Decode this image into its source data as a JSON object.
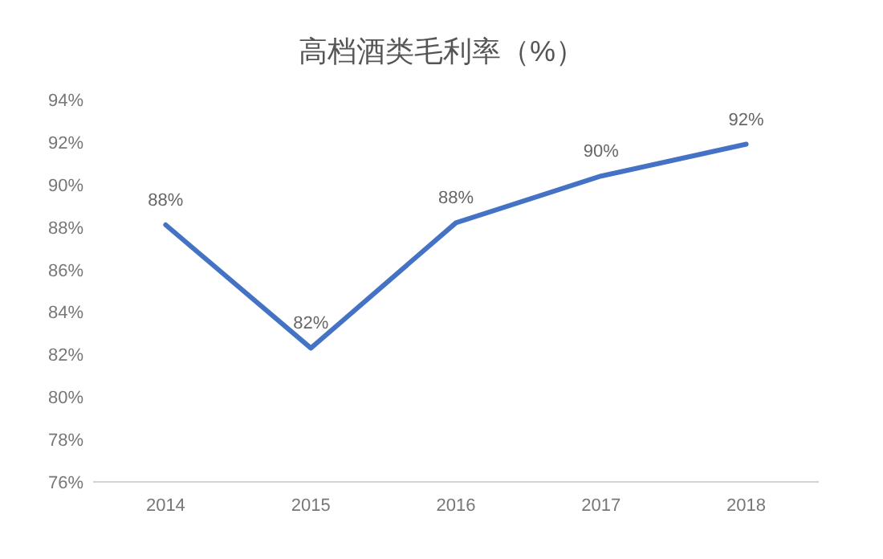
{
  "chart_data": {
    "type": "line",
    "title": "高档酒类毛利率（%）",
    "categories": [
      "2014",
      "2015",
      "2016",
      "2017",
      "2018"
    ],
    "series": [
      {
        "color": "#4472c4",
        "values": [
          88.1,
          82.3,
          88.2,
          90.4,
          91.9
        ],
        "value_labels": [
          "88%",
          "82%",
          "88%",
          "90%",
          "92%"
        ]
      }
    ],
    "ylim": [
      76,
      94
    ],
    "yticks": [
      {
        "value": 76,
        "label": "76%"
      },
      {
        "value": 78,
        "label": "78%"
      },
      {
        "value": 80,
        "label": "80%"
      },
      {
        "value": 82,
        "label": "82%"
      },
      {
        "value": 84,
        "label": "84%"
      },
      {
        "value": 86,
        "label": "86%"
      },
      {
        "value": 88,
        "label": "88%"
      },
      {
        "value": 90,
        "label": "90%"
      },
      {
        "value": 92,
        "label": "92%"
      },
      {
        "value": 94,
        "label": "94%"
      }
    ],
    "marker": "none",
    "line_style": "solid"
  }
}
